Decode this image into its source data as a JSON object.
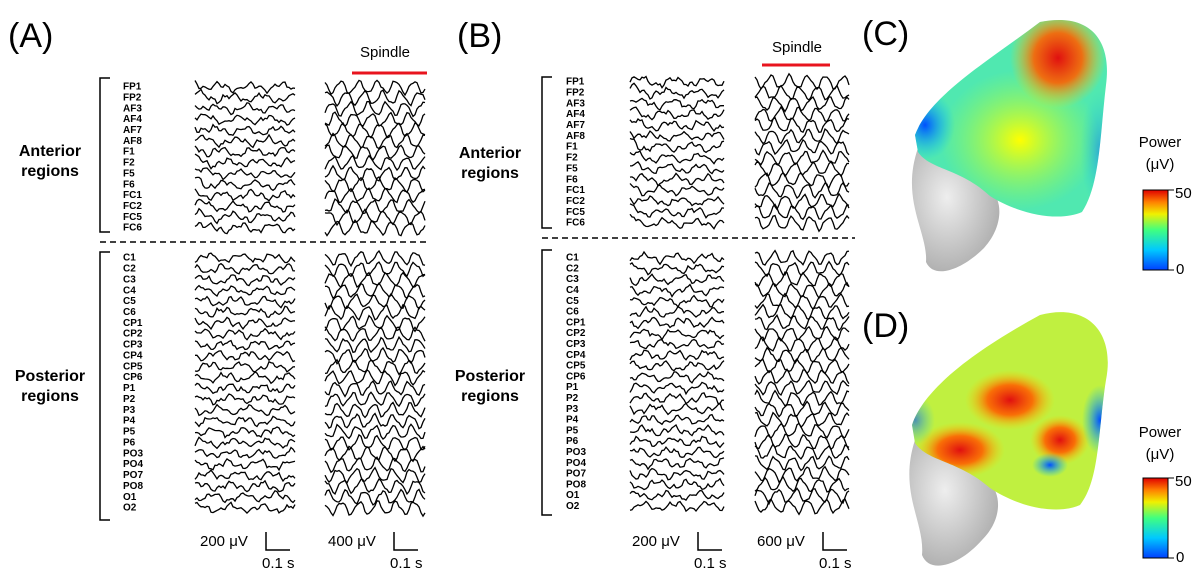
{
  "panels": [
    {
      "label": "(A)",
      "spindle": "Spindle",
      "groups": [
        {
          "lines": [
            "Anterior",
            "regions"
          ],
          "channels": [
            "FP1",
            "FP2",
            "AF3",
            "AF4",
            "AF7",
            "AF8",
            "F1",
            "F2",
            "F5",
            "F6",
            "FC1",
            "FC2",
            "FC5",
            "FC6"
          ]
        },
        {
          "lines": [
            "Posterior",
            "regions"
          ],
          "channels": [
            "C1",
            "C2",
            "C3",
            "C4",
            "C5",
            "C6",
            "CP1",
            "CP2",
            "CP3",
            "CP4",
            "CP5",
            "CP6",
            "P1",
            "P2",
            "P3",
            "P4",
            "P5",
            "P6",
            "PO3",
            "PO4",
            "PO7",
            "PO8",
            "O1",
            "O2"
          ]
        }
      ],
      "scale_bars": [
        {
          "amplitude": "200 μV",
          "time": "0.1 s"
        },
        {
          "amplitude": "400 μV",
          "time": "0.1 s"
        }
      ]
    },
    {
      "label": "(B)",
      "spindle": "Spindle",
      "groups": [
        {
          "lines": [
            "Anterior",
            "regions"
          ],
          "channels": [
            "FP1",
            "FP2",
            "AF3",
            "AF4",
            "AF7",
            "AF8",
            "F1",
            "F2",
            "F5",
            "F6",
            "FC1",
            "FC2",
            "FC5",
            "FC6"
          ]
        },
        {
          "lines": [
            "Posterior",
            "regions"
          ],
          "channels": [
            "C1",
            "C2",
            "C3",
            "C4",
            "C5",
            "C6",
            "CP1",
            "CP2",
            "CP3",
            "CP4",
            "CP5",
            "CP6",
            "P1",
            "P2",
            "P3",
            "P4",
            "P5",
            "P6",
            "PO3",
            "PO4",
            "PO7",
            "PO8",
            "O1",
            "O2"
          ]
        }
      ],
      "scale_bars": [
        {
          "amplitude": "200 μV",
          "time": "0.1 s"
        },
        {
          "amplitude": "600 μV",
          "time": "0.1 s"
        }
      ]
    },
    {
      "label": "(C)",
      "colorbar": {
        "title": "Power",
        "unit": "(μV)",
        "max": 50,
        "min": 0
      }
    },
    {
      "label": "(D)",
      "colorbar": {
        "title": "Power",
        "unit": "(μV)",
        "max": 50,
        "min": 0
      }
    }
  ]
}
